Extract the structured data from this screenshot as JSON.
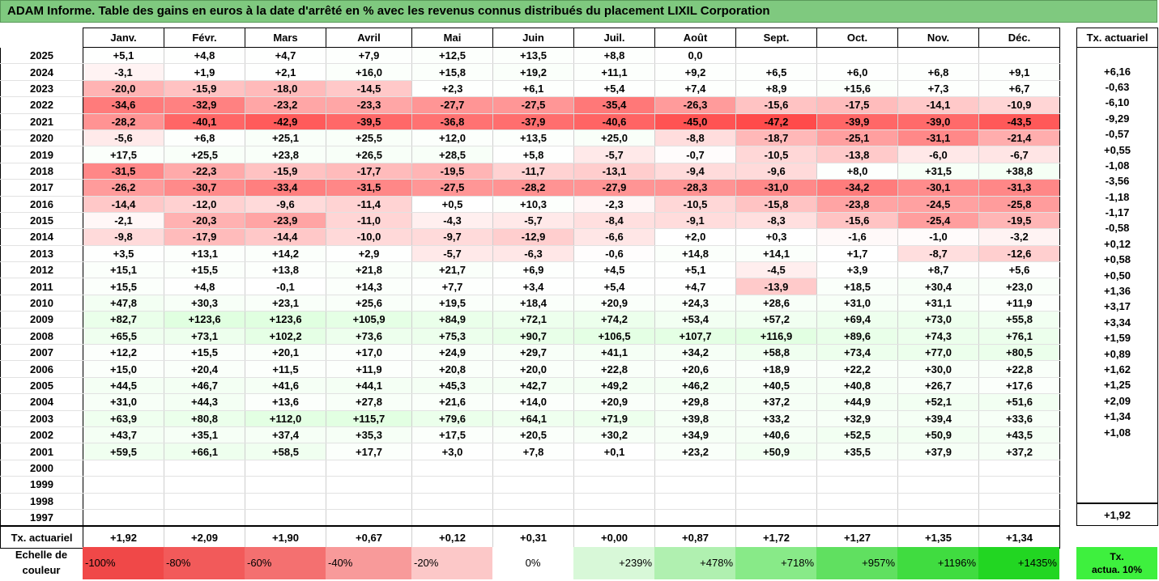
{
  "title": "ADAM Informe. Table des gains en euros à la date d'arrêté en % avec les revenus connus distribués du placement LIXIL Corporation",
  "months": [
    "Janv.",
    "Févr.",
    "Mars",
    "Avril",
    "Mai",
    "Juin",
    "Juil.",
    "Août",
    "Sept.",
    "Oct.",
    "Nov.",
    "Déc."
  ],
  "side_header": "Tx. actuariel",
  "rows": [
    {
      "year": "2025",
      "vals": [
        "+5,1",
        "+4,8",
        "+4,7",
        "+7,9",
        "+12,5",
        "+13,5",
        "+8,8",
        "0,0",
        "",
        "",
        "",
        ""
      ],
      "tx": ""
    },
    {
      "year": "2024",
      "vals": [
        "-3,1",
        "+1,9",
        "+2,1",
        "+16,0",
        "+15,8",
        "+19,2",
        "+11,1",
        "+9,2",
        "+6,5",
        "+6,0",
        "+6,8",
        "+9,1"
      ],
      "tx": "+6,16"
    },
    {
      "year": "2023",
      "vals": [
        "-20,0",
        "-15,9",
        "-18,0",
        "-14,5",
        "+2,3",
        "+6,1",
        "+5,4",
        "+7,4",
        "+8,9",
        "+15,6",
        "+7,3",
        "+6,7"
      ],
      "tx": "-0,63"
    },
    {
      "year": "2022",
      "vals": [
        "-34,6",
        "-32,9",
        "-23,2",
        "-23,3",
        "-27,7",
        "-27,5",
        "-35,4",
        "-26,3",
        "-15,6",
        "-17,5",
        "-14,1",
        "-10,9"
      ],
      "tx": "-6,10"
    },
    {
      "year": "2021",
      "vals": [
        "-28,2",
        "-40,1",
        "-42,9",
        "-39,5",
        "-36,8",
        "-37,9",
        "-40,6",
        "-45,0",
        "-47,2",
        "-39,9",
        "-39,0",
        "-43,5"
      ],
      "tx": "-9,29"
    },
    {
      "year": "2020",
      "vals": [
        "-5,6",
        "+6,8",
        "+25,1",
        "+25,5",
        "+12,0",
        "+13,5",
        "+25,0",
        "-8,8",
        "-18,7",
        "-25,1",
        "-31,1",
        "-21,4"
      ],
      "tx": "-0,57"
    },
    {
      "year": "2019",
      "vals": [
        "+17,5",
        "+25,5",
        "+23,8",
        "+26,5",
        "+28,5",
        "+5,8",
        "-5,7",
        "-0,7",
        "-10,5",
        "-13,8",
        "-6,0",
        "-6,7"
      ],
      "tx": "+0,55"
    },
    {
      "year": "2018",
      "vals": [
        "-31,5",
        "-22,3",
        "-15,9",
        "-17,7",
        "-19,5",
        "-11,7",
        "-13,1",
        "-9,4",
        "-9,6",
        "+8,0",
        "+31,5",
        "+38,8"
      ],
      "tx": "-1,08"
    },
    {
      "year": "2017",
      "vals": [
        "-26,2",
        "-30,7",
        "-33,4",
        "-31,5",
        "-27,5",
        "-28,2",
        "-27,9",
        "-28,3",
        "-31,0",
        "-34,2",
        "-30,1",
        "-31,3"
      ],
      "tx": "-3,56"
    },
    {
      "year": "2016",
      "vals": [
        "-14,4",
        "-12,0",
        "-9,6",
        "-11,4",
        "+0,5",
        "+10,3",
        "-2,3",
        "-10,5",
        "-15,8",
        "-23,8",
        "-24,5",
        "-25,8"
      ],
      "tx": "-1,18"
    },
    {
      "year": "2015",
      "vals": [
        "-2,1",
        "-20,3",
        "-23,9",
        "-11,0",
        "-4,3",
        "-5,7",
        "-8,4",
        "-9,1",
        "-8,3",
        "-15,6",
        "-25,4",
        "-19,5"
      ],
      "tx": "-1,17"
    },
    {
      "year": "2014",
      "vals": [
        "-9,8",
        "-17,9",
        "-14,4",
        "-10,0",
        "-9,7",
        "-12,9",
        "-6,6",
        "+2,0",
        "+0,3",
        "-1,6",
        "-1,0",
        "-3,2"
      ],
      "tx": "-0,58"
    },
    {
      "year": "2013",
      "vals": [
        "+3,5",
        "+13,1",
        "+14,2",
        "+2,9",
        "-5,7",
        "-6,3",
        "-0,6",
        "+14,8",
        "+14,1",
        "+1,7",
        "-8,7",
        "-12,6"
      ],
      "tx": "+0,12"
    },
    {
      "year": "2012",
      "vals": [
        "+15,1",
        "+15,5",
        "+13,8",
        "+21,8",
        "+21,7",
        "+6,9",
        "+4,5",
        "+5,1",
        "-4,5",
        "+3,9",
        "+8,7",
        "+5,6"
      ],
      "tx": "+0,58"
    },
    {
      "year": "2011",
      "vals": [
        "+15,5",
        "+4,8",
        "-0,1",
        "+14,3",
        "+7,7",
        "+3,4",
        "+5,4",
        "+4,7",
        "-13,9",
        "+18,5",
        "+30,4",
        "+23,0"
      ],
      "tx": "+0,50"
    },
    {
      "year": "2010",
      "vals": [
        "+47,8",
        "+30,3",
        "+23,1",
        "+25,6",
        "+19,5",
        "+18,4",
        "+20,9",
        "+24,3",
        "+28,6",
        "+31,0",
        "+31,1",
        "+11,9"
      ],
      "tx": "+1,36"
    },
    {
      "year": "2009",
      "vals": [
        "+82,7",
        "+123,6",
        "+123,6",
        "+105,9",
        "+84,9",
        "+72,1",
        "+74,2",
        "+53,4",
        "+57,2",
        "+69,4",
        "+73,0",
        "+55,8"
      ],
      "tx": "+3,17"
    },
    {
      "year": "2008",
      "vals": [
        "+65,5",
        "+73,1",
        "+102,2",
        "+73,6",
        "+75,3",
        "+90,7",
        "+106,5",
        "+107,7",
        "+116,9",
        "+89,6",
        "+74,3",
        "+76,1"
      ],
      "tx": "+3,34"
    },
    {
      "year": "2007",
      "vals": [
        "+12,2",
        "+15,5",
        "+20,1",
        "+17,0",
        "+24,9",
        "+29,7",
        "+41,1",
        "+34,2",
        "+58,8",
        "+73,4",
        "+77,0",
        "+80,5"
      ],
      "tx": "+1,59"
    },
    {
      "year": "2006",
      "vals": [
        "+15,0",
        "+20,4",
        "+11,5",
        "+11,9",
        "+20,8",
        "+20,0",
        "+22,8",
        "+20,6",
        "+18,9",
        "+22,2",
        "+30,0",
        "+22,8"
      ],
      "tx": "+0,89"
    },
    {
      "year": "2005",
      "vals": [
        "+44,5",
        "+46,7",
        "+41,6",
        "+44,1",
        "+45,3",
        "+42,7",
        "+49,2",
        "+46,2",
        "+40,5",
        "+40,8",
        "+26,7",
        "+17,6"
      ],
      "tx": "+1,62"
    },
    {
      "year": "2004",
      "vals": [
        "+31,0",
        "+44,3",
        "+13,6",
        "+27,8",
        "+21,6",
        "+14,0",
        "+20,9",
        "+29,8",
        "+37,2",
        "+44,9",
        "+52,1",
        "+51,6"
      ],
      "tx": "+1,25"
    },
    {
      "year": "2003",
      "vals": [
        "+63,9",
        "+80,8",
        "+112,0",
        "+115,7",
        "+79,6",
        "+64,1",
        "+71,9",
        "+39,8",
        "+33,2",
        "+32,9",
        "+39,4",
        "+33,6"
      ],
      "tx": "+2,09"
    },
    {
      "year": "2002",
      "vals": [
        "+43,7",
        "+35,1",
        "+37,4",
        "+35,3",
        "+17,5",
        "+20,5",
        "+30,2",
        "+34,9",
        "+40,6",
        "+52,5",
        "+50,9",
        "+43,5"
      ],
      "tx": "+1,34"
    },
    {
      "year": "2001",
      "vals": [
        "+59,5",
        "+66,1",
        "+58,5",
        "+17,7",
        "+3,0",
        "+7,8",
        "+0,1",
        "+23,2",
        "+50,9",
        "+35,5",
        "+37,9",
        "+37,2"
      ],
      "tx": "+1,08"
    },
    {
      "year": "2000",
      "vals": [
        "",
        "",
        "",
        "",
        "",
        "",
        "",
        "",
        "",
        "",
        "",
        ""
      ],
      "tx": ""
    },
    {
      "year": "1999",
      "vals": [
        "",
        "",
        "",
        "",
        "",
        "",
        "",
        "",
        "",
        "",
        "",
        ""
      ],
      "tx": ""
    },
    {
      "year": "1998",
      "vals": [
        "",
        "",
        "",
        "",
        "",
        "",
        "",
        "",
        "",
        "",
        "",
        ""
      ],
      "tx": ""
    },
    {
      "year": "1997",
      "vals": [
        "",
        "",
        "",
        "",
        "",
        "",
        "",
        "",
        "",
        "",
        "",
        ""
      ],
      "tx": ""
    }
  ],
  "footer": {
    "label": "Tx. actuariel",
    "vals": [
      "+1,92",
      "+2,09",
      "+1,90",
      "+0,67",
      "+0,12",
      "+0,31",
      "+0,00",
      "+0,87",
      "+1,72",
      "+1,27",
      "+1,35",
      "+1,34"
    ],
    "tx": "+1,92"
  },
  "scale": {
    "label_line1": "Echelle de",
    "label_line2": "couleur",
    "items": [
      {
        "label": "-100%",
        "color": "#f04848",
        "align": "left"
      },
      {
        "label": "-80%",
        "color": "#f25a5a",
        "align": "left"
      },
      {
        "label": "-60%",
        "color": "#f47070",
        "align": "left"
      },
      {
        "label": "-40%",
        "color": "#f89a9a",
        "align": "left"
      },
      {
        "label": "-20%",
        "color": "#fcc8c8",
        "align": "left"
      },
      {
        "label": "0%",
        "color": "#ffffff",
        "align": "center"
      },
      {
        "label": "+239%",
        "color": "#d8f8d8",
        "align": "right"
      },
      {
        "label": "+478%",
        "color": "#b0f0b0",
        "align": "right"
      },
      {
        "label": "+718%",
        "color": "#88ea88",
        "align": "right"
      },
      {
        "label": "+957%",
        "color": "#60e060",
        "align": "right"
      },
      {
        "label": "+1196%",
        "color": "#40dc40",
        "align": "right"
      },
      {
        "label": "+1435%",
        "color": "#22d622",
        "align": "right"
      }
    ],
    "tx10_line1": "Tx.",
    "tx10_line2": "actua. 10%"
  }
}
